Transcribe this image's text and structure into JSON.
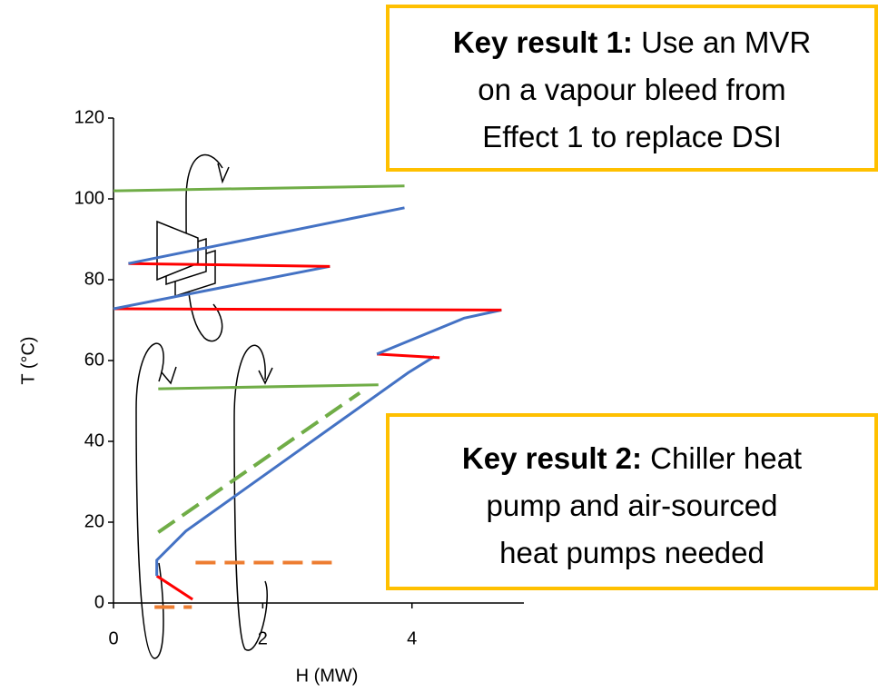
{
  "chart_data": {
    "type": "line",
    "xlabel": "H (MW)",
    "ylabel": "T (°C)",
    "xlim": [
      0,
      5.5
    ],
    "xticks": [
      0,
      2,
      4
    ],
    "ylim": [
      0,
      120
    ],
    "yticks": [
      0,
      20,
      40,
      60,
      80,
      100,
      120
    ],
    "series": [
      {
        "color": "#ff0000",
        "dash": false,
        "x": [
          1.06,
          0.58
        ],
        "values": [
          0.9,
          6.7
        ]
      },
      {
        "color": "#4472c4",
        "dash": false,
        "x": [
          0.58,
          0.58,
          0.97,
          3.95,
          4.3
        ],
        "values": [
          6.7,
          10.6,
          17.8,
          57,
          61
        ]
      },
      {
        "color": "#ff0000",
        "dash": false,
        "x": [
          4.37,
          3.53
        ],
        "values": [
          60.7,
          61.6
        ]
      },
      {
        "color": "#4472c4",
        "dash": false,
        "x": [
          3.53,
          4.7,
          5.2
        ],
        "values": [
          61.6,
          70.5,
          72.5
        ]
      },
      {
        "color": "#ff0000",
        "dash": false,
        "x": [
          5.2,
          0
        ],
        "values": [
          72.5,
          72.8
        ]
      },
      {
        "color": "#4472c4",
        "dash": false,
        "x": [
          0,
          2.9
        ],
        "values": [
          72.8,
          83.3
        ]
      },
      {
        "color": "#ff0000",
        "dash": false,
        "x": [
          2.9,
          0.2
        ],
        "values": [
          83.3,
          84
        ]
      },
      {
        "color": "#4472c4",
        "dash": false,
        "x": [
          0.2,
          3.9
        ],
        "values": [
          84,
          97.8
        ]
      },
      {
        "color": "#70ad47",
        "dash": false,
        "x": [
          0,
          3.9
        ],
        "values": [
          102,
          103.2
        ]
      },
      {
        "color": "#70ad47",
        "dash": false,
        "x": [
          0.6,
          3.55
        ],
        "values": [
          53,
          54
        ]
      },
      {
        "color": "#70ad47",
        "dash": true,
        "x": [
          0.6,
          3.3
        ],
        "values": [
          17.5,
          52
        ]
      },
      {
        "color": "#ed7d31",
        "dash": true,
        "x": [
          1.1,
          3.0
        ],
        "values": [
          10,
          10
        ]
      },
      {
        "color": "#ed7d31",
        "dash": true,
        "x": [
          0.55,
          1.05
        ],
        "values": [
          -1,
          -1
        ]
      }
    ]
  },
  "annotations": [
    {
      "bold": "Key result 1:",
      "lines": [
        "Use an MVR",
        "on a vapour bleed from",
        "Effect 1 to replace DSI"
      ]
    },
    {
      "bold": "Key result 2:",
      "lines": [
        "Chiller heat",
        "pump and air-sourced",
        "heat pumps needed"
      ]
    }
  ]
}
